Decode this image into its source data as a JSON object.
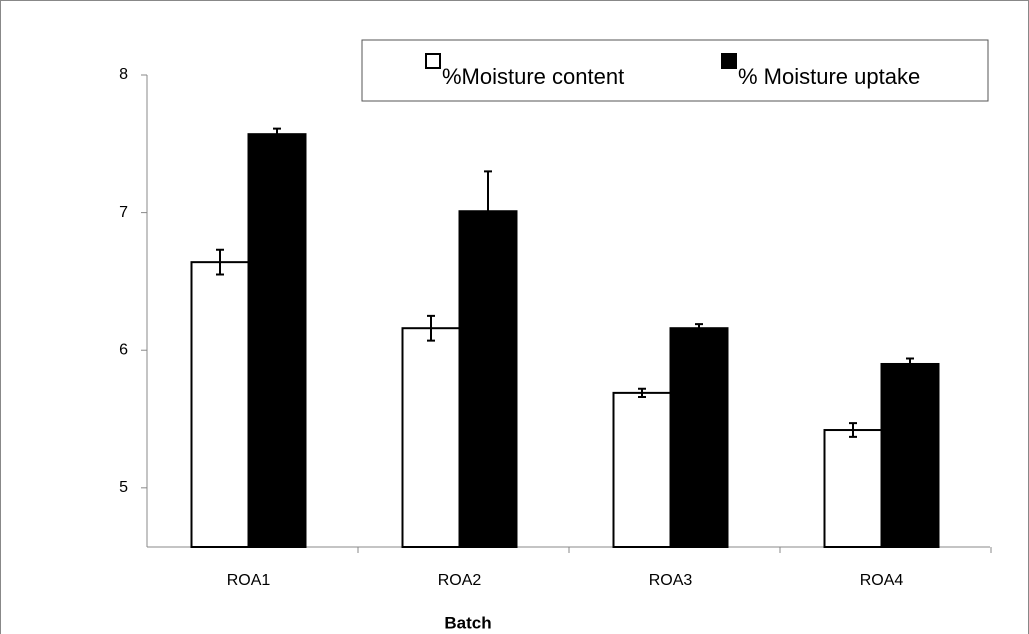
{
  "chart_data": {
    "type": "bar",
    "x_label": "Batch",
    "categories": [
      "ROA1",
      "ROA2",
      "ROA3",
      "ROA4"
    ],
    "series": [
      {
        "name": "%Moisture content",
        "color": "#ffffff",
        "values": [
          6.64,
          6.16,
          5.69,
          5.42
        ],
        "errors": [
          0.09,
          0.09,
          0.03,
          0.05
        ]
      },
      {
        "name": "% Moisture uptake",
        "color": "#000000",
        "values": [
          7.57,
          7.01,
          6.16,
          5.9
        ],
        "errors": [
          0.04,
          0.29,
          0.03,
          0.04
        ]
      }
    ],
    "ylim": [
      4.57,
      8
    ],
    "yticks": [
      5,
      6,
      7,
      8
    ],
    "legend": "top-right"
  }
}
